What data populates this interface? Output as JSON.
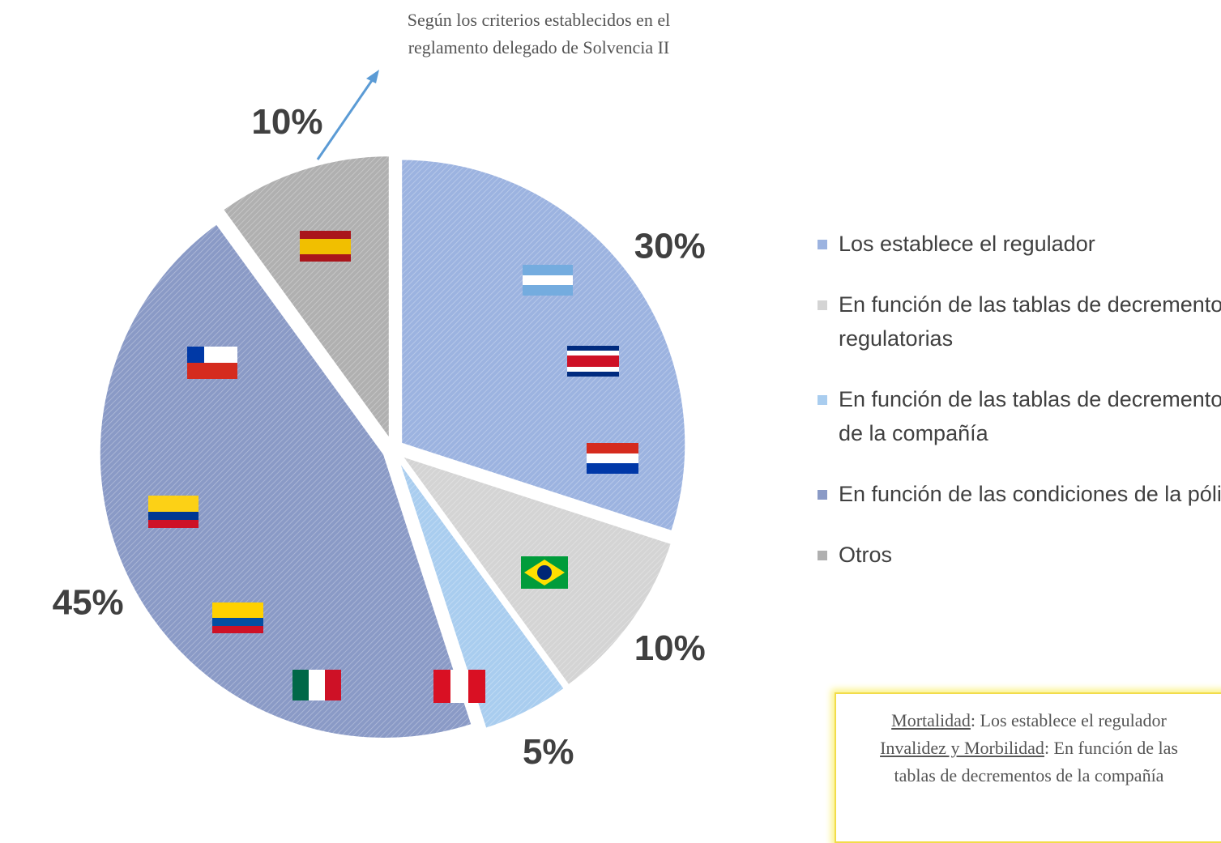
{
  "chart_data": {
    "type": "pie",
    "annotation": "Según los criterios establecidos en el reglamento delegado de Solvencia II",
    "categories": [
      "Los establece el regulador",
      "En función de las tablas de decrementos regulatorias",
      "En función de las tablas de decrementos de la compañía",
      "En función de las condiciones de la póliza",
      "Otros"
    ],
    "values": [
      30,
      10,
      5,
      45,
      10
    ],
    "value_labels": [
      "30%",
      "10%",
      "5%",
      "45%",
      "10%"
    ],
    "colors": [
      "#9cb3e0",
      "#d4d4d4",
      "#a9cdef",
      "#8a9ac6",
      "#b0b0b0"
    ],
    "legend": "right",
    "note": [
      {
        "term": "Mortalidad",
        "text": ": Los establece el regulador"
      },
      {
        "term": "Invalidez y Morbilidad",
        "text": ": En función de las tablas de decrementos de la compañía"
      }
    ]
  }
}
